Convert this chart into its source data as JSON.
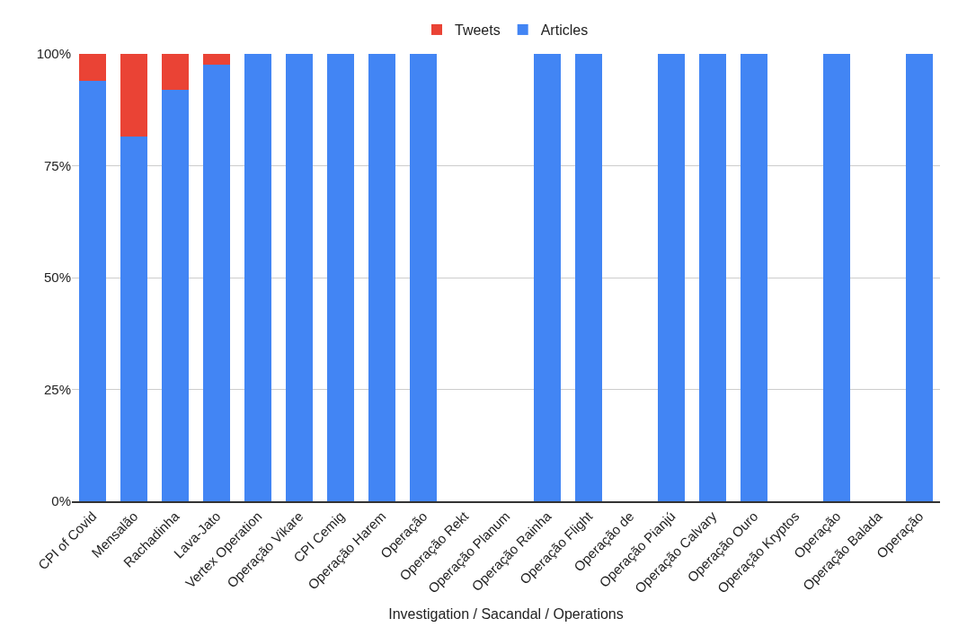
{
  "chart_data": {
    "type": "bar",
    "stacked": true,
    "xlabel": "Investigation / Sacandal / Operations",
    "categories": [
      "CPI of Covid",
      "Mensalão",
      "Rachadinha",
      "Lava-Jato",
      "Vertex Operation",
      "Operação Vikare",
      "CPI Cemig",
      "Operação Harem",
      "Operação",
      "Operação Rekt",
      "Operação Planum",
      "Operação Rainha",
      "Operação Flight",
      "Operação de",
      "Operação Pianjú",
      "Operação Calvary",
      "Operação Ouro",
      "Operação Kryptos",
      "Operação",
      "Operação Balada",
      "Operação"
    ],
    "series": [
      {
        "name": "Articles",
        "color": "#4285f4",
        "values": [
          94,
          81.5,
          92,
          97.5,
          100,
          100,
          100,
          100,
          100,
          null,
          null,
          100,
          100,
          null,
          100,
          100,
          100,
          null,
          100,
          null,
          100
        ]
      },
      {
        "name": "Tweets",
        "color": "#ea4335",
        "values": [
          6,
          18.5,
          8,
          2.5,
          0,
          0,
          0,
          0,
          0,
          null,
          null,
          0,
          0,
          null,
          0,
          0,
          0,
          null,
          0,
          null,
          0
        ]
      }
    ],
    "ylim": [
      0,
      100
    ],
    "yticks": [
      {
        "value": 0,
        "label": "0%"
      },
      {
        "value": 25,
        "label": "25%"
      },
      {
        "value": 50,
        "label": "50%"
      },
      {
        "value": 75,
        "label": "75%"
      },
      {
        "value": 100,
        "label": "100%"
      }
    ],
    "grid": "y",
    "legend": "top"
  }
}
